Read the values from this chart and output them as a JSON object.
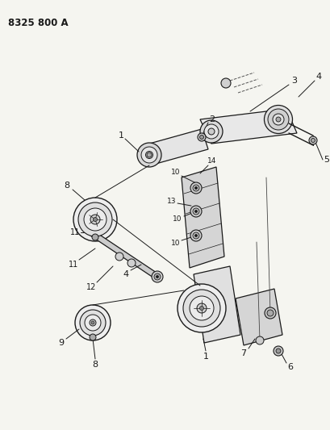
{
  "title": "8325 800 A",
  "bg_color": "#f5f5f0",
  "line_color": "#1a1a1a",
  "fig_width": 4.1,
  "fig_height": 5.33,
  "dpi": 100
}
